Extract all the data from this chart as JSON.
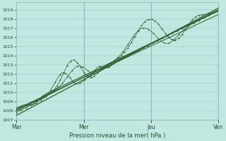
{
  "background_color": "#c0e8e0",
  "line_color": "#2d5e2d",
  "dot_color": "#2d5e2d",
  "ylim": [
    1007,
    1019.8
  ],
  "yticks": [
    1007,
    1008,
    1009,
    1010,
    1011,
    1012,
    1013,
    1014,
    1015,
    1016,
    1017,
    1018,
    1019
  ],
  "xtick_labels": [
    "Mar",
    "Mer",
    "Jeu",
    "Ven"
  ],
  "xlabel": "Pression niveau de la mer( hPa )",
  "figsize": [
    3.2,
    2.0
  ],
  "dpi": 100
}
